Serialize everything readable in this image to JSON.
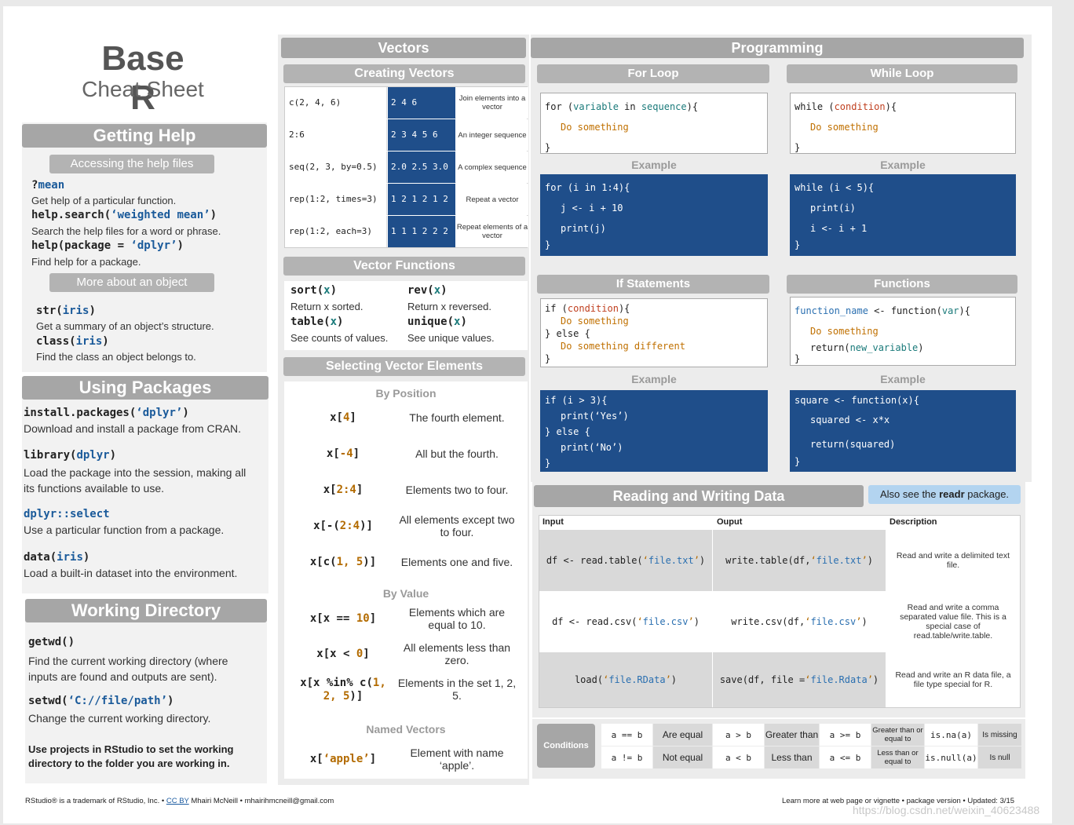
{
  "title": {
    "main": "Base R",
    "sub": "Cheat Sheet"
  },
  "getting_help": {
    "header": "Getting Help",
    "sub1": "Accessing the help files",
    "items": [
      {
        "code_a": "?",
        "code_b": "mean",
        "code_c": "",
        "desc": "Get help of a particular function."
      },
      {
        "code_a": "help.search(",
        "code_b": "‘weighted mean’",
        "code_c": ")",
        "desc": "Search the help files for a word or phrase."
      },
      {
        "code_a": "help(package = ",
        "code_b": "‘dplyr’",
        "code_c": ")",
        "desc": "Find help for a package."
      }
    ],
    "sub2": "More about an object",
    "items2": [
      {
        "code_a": "str(",
        "code_b": "iris",
        "code_c": ")",
        "desc": "Get a summary of an object’s structure."
      },
      {
        "code_a": "class(",
        "code_b": "iris",
        "code_c": ")",
        "desc": "Find the class an object belongs to."
      }
    ]
  },
  "using_packages": {
    "header": "Using Packages",
    "items": [
      {
        "code_a": "install.packages(",
        "code_b": "‘dplyr’",
        "code_c": ")",
        "desc": "Download and install a package from CRAN."
      },
      {
        "code_a": "library(",
        "code_b": "dplyr",
        "code_c": ")",
        "desc": "Load the package into the session, making all its functions available to use."
      },
      {
        "code_a": "",
        "code_b": "dplyr::select",
        "code_c": "",
        "desc": "Use a particular function from a package."
      },
      {
        "code_a": "data(",
        "code_b": "iris",
        "code_c": ")",
        "desc": "Load a built-in dataset into the environment."
      }
    ]
  },
  "working_directory": {
    "header": "Working Directory",
    "items": [
      {
        "code_a": "getwd()",
        "code_b": "",
        "code_c": "",
        "desc": "Find the current working directory (where inputs are found and outputs are sent)."
      },
      {
        "code_a": "setwd(",
        "code_b": "‘C://file/path’",
        "code_c": ")",
        "desc": "Change the current working directory."
      }
    ],
    "note": "Use projects in RStudio to set the working directory to the folder you are working in."
  },
  "vectors": {
    "header": "Vectors",
    "creating": "Creating Vectors",
    "rows": [
      {
        "code": "c(2, 4, 6)",
        "result": "2 4 6",
        "desc": "Join elements into a vector"
      },
      {
        "code": "2:6",
        "result": "2 3 4 5 6",
        "desc": "An integer sequence"
      },
      {
        "code": "seq(2, 3, by=0.5)",
        "result": "2.0 2.5 3.0",
        "desc": "A complex sequence"
      },
      {
        "code": "rep(1:2, times=3)",
        "result": "1 2 1 2 1 2",
        "desc": "Repeat a vector"
      },
      {
        "code": "rep(1:2, each=3)",
        "result": "1 1 1 2 2 2",
        "desc": "Repeat elements of a vector"
      }
    ],
    "functions": "Vector Functions",
    "fn": [
      {
        "name": "sort",
        "arg": "x",
        "desc": "Return x sorted."
      },
      {
        "name": "rev",
        "arg": "x",
        "desc": "Return x reversed."
      },
      {
        "name": "table",
        "arg": "x",
        "desc": "See counts of values."
      },
      {
        "name": "unique",
        "arg": "x",
        "desc": "See unique values."
      }
    ],
    "selecting": "Selecting Vector Elements",
    "by_position": "By Position",
    "pos": [
      {
        "a": "x[",
        "b": "4",
        "c": "]",
        "desc": "The fourth element."
      },
      {
        "a": "x[",
        "b": "-4",
        "c": "]",
        "desc": "All but the fourth."
      },
      {
        "a": "x[",
        "b": "2:4",
        "c": "]",
        "desc": "Elements two to four."
      },
      {
        "a": "x[-(",
        "b": "2:4",
        "c": ")]",
        "desc": "All elements except two to four."
      },
      {
        "a": "x[c(",
        "b": "1, 5",
        "c": ")]",
        "desc": "Elements one and five."
      }
    ],
    "by_value": "By Value",
    "val": [
      {
        "a": "x[x == ",
        "b": "10",
        "c": "]",
        "desc": "Elements which are equal to 10."
      },
      {
        "a": "x[x < ",
        "b": "0",
        "c": "]",
        "desc": "All elements less than zero."
      },
      {
        "a": "x[x %in% c(",
        "b": "1, 2, 5",
        "c": ")]",
        "desc": "Elements in the set 1, 2, 5."
      }
    ],
    "named": "Named Vectors",
    "named_item": {
      "a": "x[",
      "b": "‘apple’",
      "c": "]",
      "desc": "Element with name ‘apple’."
    }
  },
  "programming": {
    "header": "Programming",
    "for_loop": "For Loop",
    "while_loop": "While Loop",
    "if_statements": "If Statements",
    "functions": "Functions",
    "example": "Example"
  },
  "reading_writing": {
    "header": "Reading and Writing Data",
    "see_also_pre": "Also see the ",
    "see_also_bold": "readr",
    "see_also_post": " package.",
    "col_input": "Input",
    "col_output": "Ouput",
    "col_desc": "Description",
    "rows": [
      {
        "desc": "Read and write a delimited text file."
      },
      {
        "desc": "Read and write a comma separated value file. This is a special case of read.table/write.table."
      },
      {
        "desc": "Read and write an R data file, a file type special for R."
      }
    ]
  },
  "conditions": {
    "label": "Conditions",
    "cells": [
      [
        "a == b",
        "Are equal",
        "a > b",
        "Greater than",
        "a >= b",
        "Greater than or equal to",
        "is.na(a)",
        "Is missing"
      ],
      [
        "a != b",
        "Not equal",
        "a < b",
        "Less than",
        "a <= b",
        "Less than or equal to",
        "is.null(a)",
        "Is null"
      ]
    ]
  },
  "footer": {
    "left_pre": "RStudio® is a trademark of RStudio, Inc.  •  ",
    "left_link": "CC BY",
    "left_post": " Mhairi McNeill  •  mhairihmcneill@gmail.com",
    "right": "Learn more at web page or vignette  •  package version  •  Updated: 3/15",
    "watermark": "https://blog.csdn.net/weixin_40623488"
  },
  "colors": {
    "header": "#a6a6a6",
    "blue": "#1f4e8a",
    "teal": "#1a7a7a",
    "accent": "#b3d4f0"
  }
}
